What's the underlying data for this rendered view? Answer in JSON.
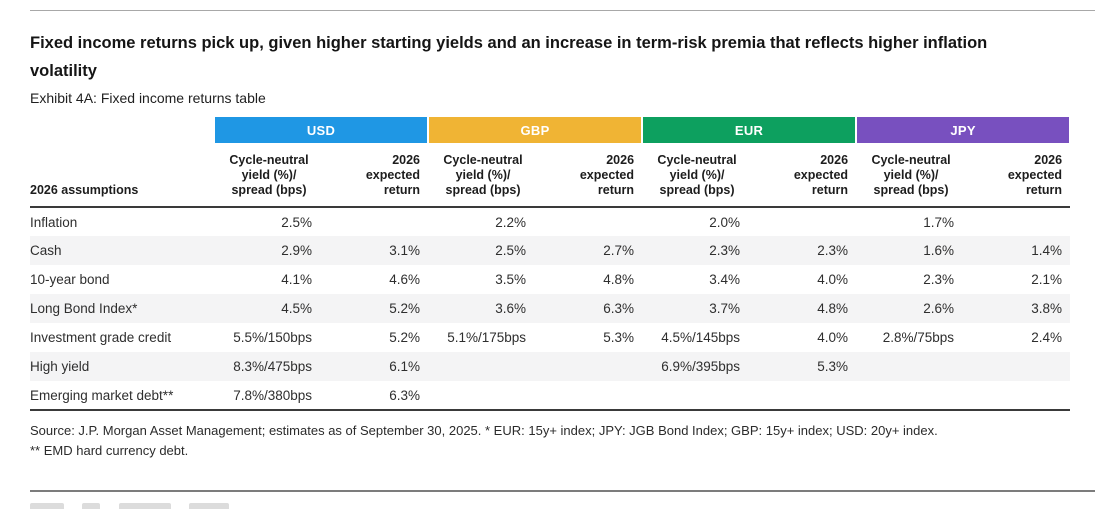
{
  "page": {
    "title": "Fixed income returns pick up, given higher starting yields and an increase in term-risk premia that reflects higher inflation volatility",
    "exhibit_label": "Exhibit 4A: Fixed income returns table"
  },
  "table": {
    "row_header_label": "2026 assumptions",
    "currency_groups": [
      {
        "code": "USD",
        "color": "#1f97e4"
      },
      {
        "code": "GBP",
        "color": "#f0b434"
      },
      {
        "code": "EUR",
        "color": "#0da05f"
      },
      {
        "code": "JPY",
        "color": "#7850bf"
      }
    ],
    "sub_headers": {
      "yield_label": "Cycle-neutral\nyield (%)/\nspread (bps)",
      "return_label": "2026\nexpected\nreturn"
    },
    "rows": [
      {
        "label": "Inflation",
        "cells": [
          "2.5%",
          "",
          "2.2%",
          "",
          "2.0%",
          "",
          "1.7%",
          ""
        ]
      },
      {
        "label": "Cash",
        "cells": [
          "2.9%",
          "3.1%",
          "2.5%",
          "2.7%",
          "2.3%",
          "2.3%",
          "1.6%",
          "1.4%"
        ]
      },
      {
        "label": "10-year bond",
        "cells": [
          "4.1%",
          "4.6%",
          "3.5%",
          "4.8%",
          "3.4%",
          "4.0%",
          "2.3%",
          "2.1%"
        ]
      },
      {
        "label": "Long Bond Index*",
        "cells": [
          "4.5%",
          "5.2%",
          "3.6%",
          "6.3%",
          "3.7%",
          "4.8%",
          "2.6%",
          "3.8%"
        ]
      },
      {
        "label": "Investment grade credit",
        "cells": [
          "5.5%/150bps",
          "5.2%",
          "5.1%/175bps",
          "5.3%",
          "4.5%/145bps",
          "4.0%",
          "2.8%/75bps",
          "2.4%"
        ]
      },
      {
        "label": "High yield",
        "cells": [
          "8.3%/475bps",
          "6.1%",
          "",
          "",
          "6.9%/395bps",
          "5.3%",
          "",
          ""
        ]
      },
      {
        "label": "Emerging market debt**",
        "cells": [
          "7.8%/380bps",
          "6.3%",
          "",
          "",
          "",
          "",
          "",
          ""
        ]
      }
    ]
  },
  "footnote": {
    "line1": "Source: J.P. Morgan Asset Management; estimates as of September 30, 2025. * EUR: 15y+ index; JPY: JGB Bond Index; GBP: 15y+ index; USD: 20y+ index.",
    "line2": "** EMD hard currency debt."
  }
}
